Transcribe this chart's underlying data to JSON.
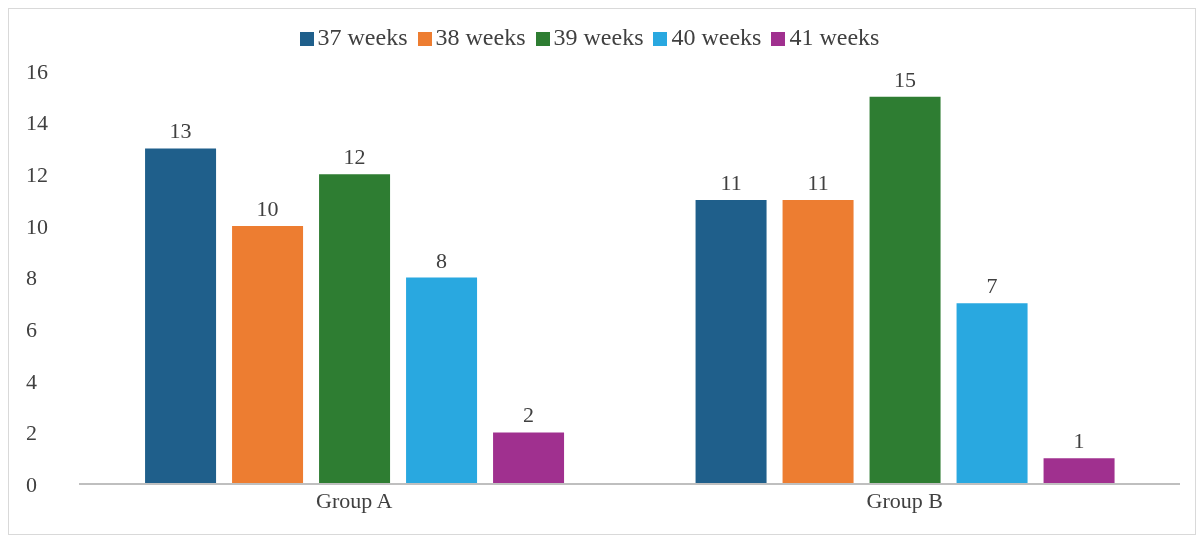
{
  "chart_data": {
    "type": "bar",
    "categories": [
      "Group A",
      "Group B"
    ],
    "series": [
      {
        "name": "37 weeks",
        "color": "#1f5f8b",
        "values": [
          13,
          11
        ]
      },
      {
        "name": "38 weeks",
        "color": "#ed7d31",
        "values": [
          10,
          11
        ]
      },
      {
        "name": "39 weeks",
        "color": "#2e7d32",
        "values": [
          12,
          15
        ]
      },
      {
        "name": "40 weeks",
        "color": "#29a8e0",
        "values": [
          8,
          7
        ]
      },
      {
        "name": "41 weeks",
        "color": "#a0308f",
        "values": [
          2,
          1
        ]
      }
    ],
    "ylim": [
      0,
      16
    ],
    "yticks": [
      0,
      2,
      4,
      6,
      8,
      10,
      12,
      14,
      16
    ],
    "grid": false,
    "legend": "top",
    "data_labels": true
  }
}
